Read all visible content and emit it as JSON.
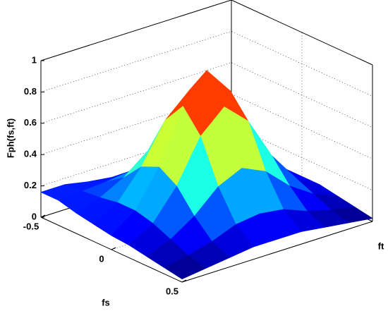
{
  "chart_data": {
    "type": "surface",
    "zlabel": "Fph(fs,ft)",
    "xlabel": "fs",
    "ylabel": "ft",
    "x": [
      -0.5,
      -0.375,
      -0.25,
      -0.125,
      0,
      0.125,
      0.25,
      0.375,
      0.5
    ],
    "y": [
      -0.5,
      -0.375,
      -0.25,
      -0.125,
      0,
      0.125,
      0.25,
      0.375,
      0.5
    ],
    "z": [
      [
        0.16,
        0.16,
        0.13,
        0.11,
        0.09,
        0.08,
        0.06,
        0.04,
        0.02
      ],
      [
        0.16,
        0.17,
        0.18,
        0.2,
        0.2,
        0.17,
        0.11,
        0.07,
        0.04
      ],
      [
        0.13,
        0.18,
        0.26,
        0.38,
        0.43,
        0.36,
        0.22,
        0.12,
        0.06
      ],
      [
        0.11,
        0.2,
        0.38,
        0.63,
        0.77,
        0.63,
        0.36,
        0.17,
        0.08
      ],
      [
        0.09,
        0.2,
        0.43,
        0.77,
        0.95,
        0.77,
        0.43,
        0.19,
        0.08
      ],
      [
        0.08,
        0.17,
        0.36,
        0.63,
        0.77,
        0.63,
        0.36,
        0.17,
        0.08
      ],
      [
        0.06,
        0.12,
        0.22,
        0.36,
        0.43,
        0.36,
        0.22,
        0.12,
        0.06
      ],
      [
        0.04,
        0.07,
        0.11,
        0.17,
        0.19,
        0.17,
        0.11,
        0.07,
        0.04
      ],
      [
        0.02,
        0.04,
        0.06,
        0.08,
        0.08,
        0.08,
        0.06,
        0.04,
        0.02
      ]
    ],
    "xlim": [
      -0.5,
      0.5
    ],
    "ylim": [
      -0.5,
      0.5
    ],
    "zlim": [
      0,
      1
    ],
    "xticks": [
      -0.5,
      0,
      0.5
    ],
    "zticks": [
      0,
      0.2,
      0.4,
      0.6,
      0.8,
      1
    ],
    "grid": true,
    "colormap": "jet"
  }
}
